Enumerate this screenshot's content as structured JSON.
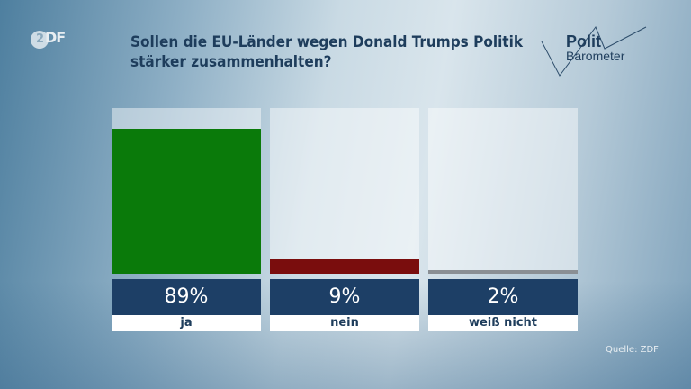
{
  "brand": {
    "logo": "ZDF",
    "program_logo": "Polit Barometer",
    "program_logo_line1": "Polit",
    "program_logo_line2": "Barometer"
  },
  "chart_data": {
    "type": "bar",
    "title": "Sollen die EU-Länder wegen Donald Trumps Politik stärker zusammenhalten?",
    "categories": [
      "ja",
      "nein",
      "weiß nicht"
    ],
    "values": [
      89,
      9,
      2
    ],
    "value_labels": [
      "89%",
      "9%",
      "2%"
    ],
    "colors": [
      "#0a7a0a",
      "#7a0d0d",
      "#8a8f94"
    ],
    "ylim": [
      0,
      100
    ],
    "grid": false,
    "source": "Quelle: ZDF"
  }
}
